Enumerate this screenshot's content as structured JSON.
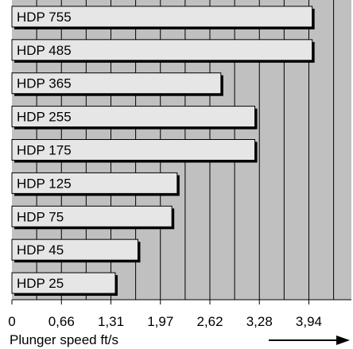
{
  "chart_data": {
    "type": "bar",
    "orientation": "horizontal",
    "categories": [
      "HDP 755",
      "HDP 485",
      "HDP 365",
      "HDP 255",
      "HDP 175",
      "HDP 125",
      "HDP 75",
      "HDP 45",
      "HDP 25"
    ],
    "values": [
      3.98,
      3.98,
      2.77,
      3.22,
      3.22,
      2.19,
      2.12,
      1.67,
      1.37
    ],
    "xlabel": "Plunger speed ft/s",
    "xticks": [
      "0",
      "0,66",
      "1,31",
      "1,97",
      "2,62",
      "3,28",
      "3,94"
    ],
    "xtick_values": [
      0,
      0.656,
      1.312,
      1.968,
      2.624,
      3.28,
      3.936
    ],
    "xlim": [
      0,
      4.5
    ],
    "grid": true,
    "colors": {
      "plot_background": "#c0c0c0",
      "bar_fill": "#e6e6e6",
      "bar_shadow": "#000000",
      "grid": "#000000"
    }
  }
}
